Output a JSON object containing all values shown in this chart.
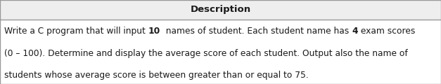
{
  "title": "Description",
  "title_fontsize": 9.5,
  "title_fontweight": "bold",
  "line1_parts": [
    [
      "Write a C program that will input ",
      false
    ],
    [
      "10",
      true
    ],
    [
      "  names of student. Each student name has ",
      false
    ],
    [
      "4",
      true
    ],
    [
      " exam scores",
      false
    ]
  ],
  "line2": "(0 – 100). Determine and display the average score of each student. Output also the name of",
  "line3": "students whose average score is between greater than or equal to 75.",
  "bg_color": "#ffffff",
  "border_color": "#999999",
  "header_bg_color": "#eeeeee",
  "text_color": "#1a1a1a",
  "font_size": 8.8,
  "fig_width": 6.27,
  "fig_height": 1.2,
  "dpi": 100
}
